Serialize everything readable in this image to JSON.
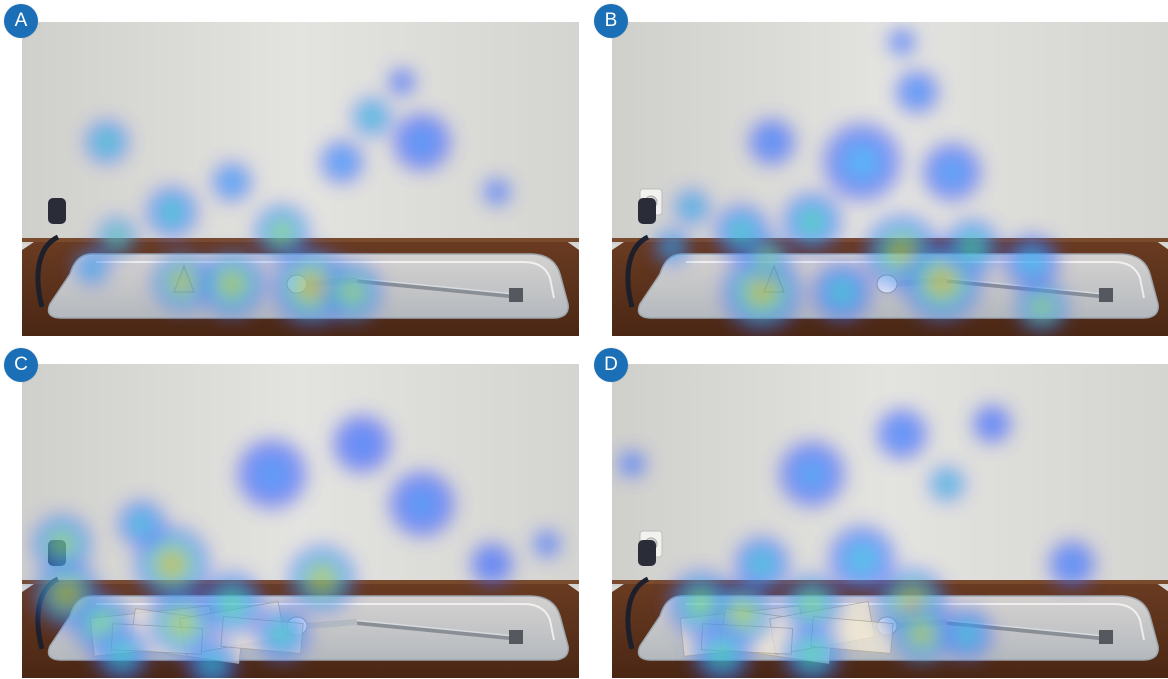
{
  "panels": [
    {
      "id": "A",
      "label": "A"
    },
    {
      "id": "B",
      "label": "B"
    },
    {
      "id": "C",
      "label": "C"
    },
    {
      "id": "D",
      "label": "D"
    }
  ],
  "heatmap_scale": [
    "blue",
    "cyan",
    "green",
    "yellow",
    "red"
  ]
}
